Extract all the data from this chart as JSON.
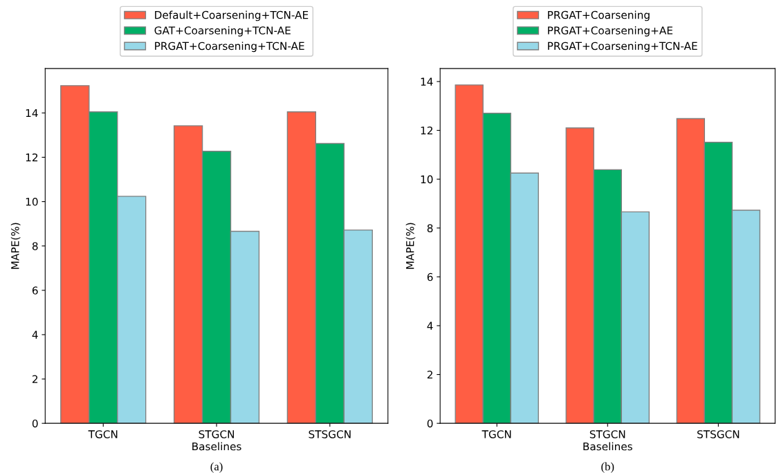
{
  "chart_data": [
    {
      "type": "bar",
      "categories": [
        "TGCN",
        "STGCN",
        "STSGCN"
      ],
      "xlabel": "Baselines",
      "ylabel": "MAPE(%)",
      "ylim": [
        0,
        16.0
      ],
      "yticks": [
        0,
        2,
        4,
        6,
        8,
        10,
        12,
        14
      ],
      "legend": "top",
      "grid": false,
      "annotations": [
        "(a)"
      ],
      "series": [
        {
          "name": "Default+Coarsening+TCN-AE",
          "color": "#ff5e44",
          "values": [
            15.23,
            13.42,
            14.05
          ]
        },
        {
          "name": "GAT+Coarsening+TCN-AE",
          "color": "#00af66",
          "values": [
            14.05,
            12.27,
            12.62
          ]
        },
        {
          "name": "PRGAT+Coarsening+TCN-AE",
          "color": "#97d8e8",
          "values": [
            10.24,
            8.66,
            8.72
          ]
        }
      ]
    },
    {
      "type": "bar",
      "categories": [
        "TGCN",
        "STGCN",
        "STSGCN"
      ],
      "xlabel": "Baselines",
      "ylabel": "MAPE(%)",
      "ylim": [
        0,
        14.53
      ],
      "yticks": [
        0,
        2,
        4,
        6,
        8,
        10,
        12,
        14
      ],
      "legend": "top",
      "grid": false,
      "annotations": [
        "(b)"
      ],
      "series": [
        {
          "name": "PRGAT+Coarsening",
          "color": "#ff5e44",
          "values": [
            13.86,
            12.1,
            12.48
          ]
        },
        {
          "name": "PRGAT+Coarsening+AE",
          "color": "#00af66",
          "values": [
            12.7,
            10.39,
            11.51
          ]
        },
        {
          "name": "PRGAT+Coarsening+TCN-AE",
          "color": "#97d8e8",
          "values": [
            10.25,
            8.66,
            8.73
          ]
        }
      ]
    }
  ]
}
